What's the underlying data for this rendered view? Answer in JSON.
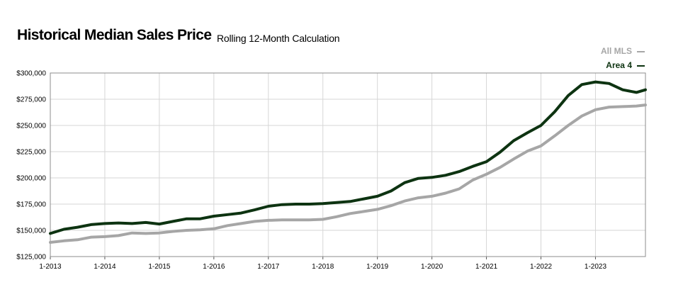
{
  "header": {
    "title": "Historical Median Sales Price",
    "subtitle": "Rolling 12-Month Calculation"
  },
  "legend": [
    {
      "name": "All MLS",
      "color": "#a6a6a6"
    },
    {
      "name": "Area 4",
      "color": "#0d3311"
    }
  ],
  "chart_data": {
    "type": "line",
    "title": "Historical Median Sales Price",
    "subtitle": "Rolling 12-Month Calculation",
    "xlabel": "",
    "ylabel": "",
    "x_tick_labels": [
      "1-2013",
      "1-2014",
      "1-2015",
      "1-2016",
      "1-2017",
      "1-2018",
      "1-2019",
      "1-2020",
      "1-2021",
      "1-2022",
      "1-2023"
    ],
    "y_tick_labels": [
      "$125,000",
      "$150,000",
      "$175,000",
      "$200,000",
      "$225,000",
      "$250,000",
      "$275,000",
      "$300,000"
    ],
    "ylim": [
      125000,
      300000
    ],
    "xlim": [
      "1-2013",
      "12-2023"
    ],
    "grid": true,
    "legend_position": "top-right",
    "series": [
      {
        "name": "All MLS",
        "color": "#a6a6a6",
        "points": [
          [
            "1-2013",
            138500
          ],
          [
            "4-2013",
            140000
          ],
          [
            "7-2013",
            141000
          ],
          [
            "10-2013",
            143500
          ],
          [
            "1-2014",
            144000
          ],
          [
            "4-2014",
            145000
          ],
          [
            "7-2014",
            147500
          ],
          [
            "10-2014",
            147000
          ],
          [
            "1-2015",
            147500
          ],
          [
            "4-2015",
            149000
          ],
          [
            "7-2015",
            150000
          ],
          [
            "10-2015",
            150500
          ],
          [
            "1-2016",
            151500
          ],
          [
            "4-2016",
            154500
          ],
          [
            "7-2016",
            156500
          ],
          [
            "10-2016",
            158500
          ],
          [
            "1-2017",
            159500
          ],
          [
            "4-2017",
            160000
          ],
          [
            "7-2017",
            160000
          ],
          [
            "10-2017",
            160000
          ],
          [
            "1-2018",
            160500
          ],
          [
            "4-2018",
            163000
          ],
          [
            "7-2018",
            166000
          ],
          [
            "10-2018",
            168000
          ],
          [
            "1-2019",
            170000
          ],
          [
            "4-2019",
            173500
          ],
          [
            "7-2019",
            178000
          ],
          [
            "10-2019",
            181000
          ],
          [
            "1-2020",
            182500
          ],
          [
            "4-2020",
            185500
          ],
          [
            "7-2020",
            189500
          ],
          [
            "10-2020",
            198000
          ],
          [
            "1-2021",
            203500
          ],
          [
            "4-2021",
            210000
          ],
          [
            "7-2021",
            218000
          ],
          [
            "10-2021",
            225500
          ],
          [
            "1-2022",
            230500
          ],
          [
            "4-2022",
            240000
          ],
          [
            "7-2022",
            250000
          ],
          [
            "10-2022",
            259000
          ],
          [
            "1-2023",
            265000
          ],
          [
            "4-2023",
            267500
          ],
          [
            "7-2023",
            268000
          ],
          [
            "10-2023",
            268500
          ],
          [
            "12-2023",
            269500
          ]
        ]
      },
      {
        "name": "Area 4",
        "color": "#0d3311",
        "points": [
          [
            "1-2013",
            147000
          ],
          [
            "4-2013",
            151000
          ],
          [
            "7-2013",
            153000
          ],
          [
            "10-2013",
            155500
          ],
          [
            "1-2014",
            156500
          ],
          [
            "4-2014",
            157000
          ],
          [
            "7-2014",
            156500
          ],
          [
            "10-2014",
            157500
          ],
          [
            "1-2015",
            156000
          ],
          [
            "4-2015",
            158500
          ],
          [
            "7-2015",
            161000
          ],
          [
            "10-2015",
            161000
          ],
          [
            "1-2016",
            163500
          ],
          [
            "4-2016",
            165000
          ],
          [
            "7-2016",
            166500
          ],
          [
            "10-2016",
            169500
          ],
          [
            "1-2017",
            173000
          ],
          [
            "4-2017",
            174500
          ],
          [
            "7-2017",
            175000
          ],
          [
            "10-2017",
            175000
          ],
          [
            "1-2018",
            175500
          ],
          [
            "4-2018",
            176500
          ],
          [
            "7-2018",
            177500
          ],
          [
            "10-2018",
            180000
          ],
          [
            "1-2019",
            182500
          ],
          [
            "4-2019",
            187500
          ],
          [
            "7-2019",
            195500
          ],
          [
            "10-2019",
            199500
          ],
          [
            "1-2020",
            200500
          ],
          [
            "4-2020",
            202500
          ],
          [
            "7-2020",
            206000
          ],
          [
            "10-2020",
            211000
          ],
          [
            "1-2021",
            215500
          ],
          [
            "4-2021",
            224500
          ],
          [
            "7-2021",
            235500
          ],
          [
            "10-2021",
            243000
          ],
          [
            "1-2022",
            250000
          ],
          [
            "4-2022",
            263000
          ],
          [
            "7-2022",
            278500
          ],
          [
            "10-2022",
            289000
          ],
          [
            "1-2023",
            291500
          ],
          [
            "4-2023",
            290000
          ],
          [
            "7-2023",
            284000
          ],
          [
            "10-2023",
            281500
          ],
          [
            "12-2023",
            284000
          ]
        ]
      }
    ]
  }
}
